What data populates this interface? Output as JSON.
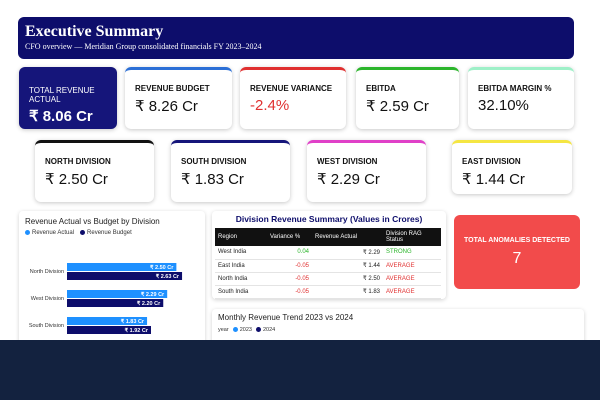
{
  "header": {
    "title": "Executive Summary",
    "subtitle": "CFO overview — Meridian Group consolidated financials FY 2023–2024"
  },
  "kpis": [
    {
      "label": "TOTAL REVENUE ACTUAL",
      "value": "₹ 8.06 Cr",
      "accent": "#15157a"
    },
    {
      "label": "REVENUE BUDGET",
      "value": "₹ 8.26 Cr",
      "accent": "#2b6fd6"
    },
    {
      "label": "REVENUE VARIANCE",
      "value": "-2.4%",
      "accent": "#e03030"
    },
    {
      "label": "EBITDA",
      "value": "₹ 2.59 Cr",
      "accent": "#2bb52b"
    },
    {
      "label": "EBITDA MARGIN %",
      "value": "32.10%",
      "accent": "#9ef0c8"
    }
  ],
  "divisions": [
    {
      "label": "NORTH DIVISION",
      "value": "₹ 2.50 Cr",
      "accent": "#111111"
    },
    {
      "label": "SOUTH DIVISION",
      "value": "₹ 1.83 Cr",
      "accent": "#15157a"
    },
    {
      "label": "WEST DIVISION",
      "value": "₹ 2.29 Cr",
      "accent": "#e040c8"
    },
    {
      "label": "EAST DIVISION",
      "value": "₹ 1.44 Cr",
      "accent": "#f5e642"
    }
  ],
  "bar_chart": {
    "title": "Revenue Actual vs Budget by Division",
    "legend": [
      {
        "name": "Revenue Actual",
        "color": "#1e90ff"
      },
      {
        "name": "Revenue Budget",
        "color": "#0d0d6b"
      }
    ]
  },
  "summary_table": {
    "title": "Division Revenue Summary (Values in Crores)",
    "headers": [
      "Region",
      "Variance %",
      "Revenue Actual",
      "Division RAG Status"
    ],
    "rows": [
      {
        "region": "West India",
        "variance": "0.04",
        "actual": "₹ 2.29",
        "status": "STRONG"
      },
      {
        "region": "East India",
        "variance": "-0.05",
        "actual": "₹ 1.44",
        "status": "AVERAGE"
      },
      {
        "region": "North India",
        "variance": "-0.05",
        "actual": "₹ 2.50",
        "status": "AVERAGE"
      },
      {
        "region": "South India",
        "variance": "-0.05",
        "actual": "₹ 1.83",
        "status": "AVERAGE"
      }
    ]
  },
  "anomalies": {
    "label": "TOTAL ANOMALIES DETECTED",
    "value": "7"
  },
  "trend": {
    "title": "Monthly Revenue Trend 2023 vs 2024",
    "legend_title": "year",
    "legend": [
      {
        "name": "2023",
        "color": "#1e90ff"
      },
      {
        "name": "2024",
        "color": "#0d0d6b"
      }
    ]
  },
  "chart_data": {
    "type": "bar",
    "title": "Revenue Actual vs Budget by Division",
    "categories": [
      "North Division",
      "West Division",
      "South Division"
    ],
    "series": [
      {
        "name": "Revenue Actual",
        "values": [
          2.5,
          2.29,
          1.83
        ],
        "labels": [
          "₹ 2.50 Cr",
          "₹ 2.29 Cr",
          "₹ 1.83 Cr"
        ]
      },
      {
        "name": "Revenue Budget",
        "values": [
          2.63,
          2.2,
          1.92
        ],
        "labels": [
          "₹ 2.63 Cr",
          "₹ 2.20 Cr",
          "₹ 1.92 Cr"
        ]
      }
    ],
    "xlim": [
      0,
      3.2
    ],
    "orientation": "horizontal"
  }
}
